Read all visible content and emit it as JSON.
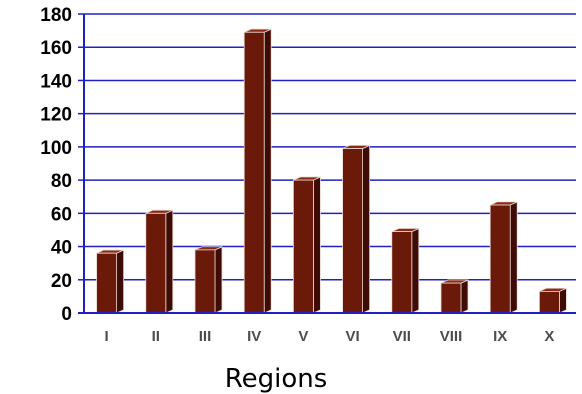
{
  "chart_data": {
    "type": "bar",
    "title": "",
    "xlabel": "Regions",
    "ylabel": "",
    "categories": [
      "I",
      "II",
      "III",
      "IV",
      "V",
      "VI",
      "VII",
      "VIII",
      "IX",
      "X"
    ],
    "values": [
      36,
      60,
      38,
      169,
      80,
      99,
      49,
      18,
      65,
      13
    ],
    "ylim": [
      0,
      180
    ],
    "yticks": [
      "0",
      "20",
      "40",
      "60",
      "80",
      "100",
      "120",
      "140",
      "160",
      "180"
    ],
    "grid": true,
    "legend": "none",
    "colors": {
      "bar_front": "#6b1a0a",
      "bar_side": "#3e0c04",
      "bar_top": "#8a2a15",
      "bar_edge": "#e8d8d0",
      "gridline": "#2020c0",
      "axis": "#2020c0",
      "plot_background": "#ffffff"
    }
  }
}
